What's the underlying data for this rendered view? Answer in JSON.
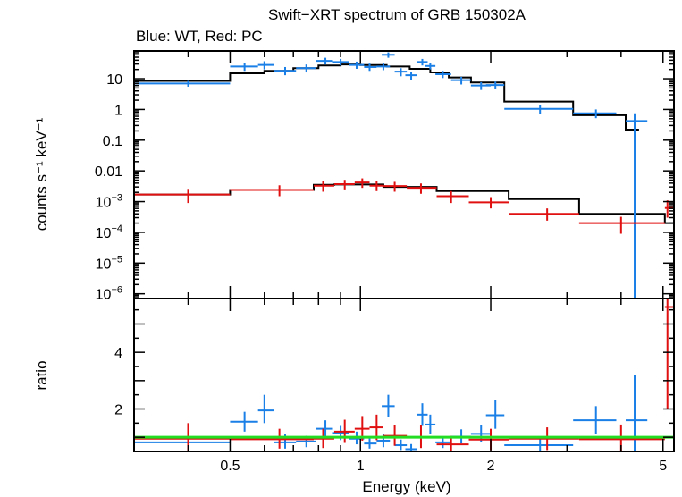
{
  "chart_data": {
    "type": "scatter",
    "title": "Swift−XRT spectrum of GRB 150302A",
    "subtitle": "Blue: WT, Red: PC",
    "xlabel": "Energy (keV)",
    "xscale": "log",
    "xlim": [
      0.3,
      5.3
    ],
    "x_ticks": [
      {
        "value": 0.5,
        "label": "0.5"
      },
      {
        "value": 1,
        "label": "1"
      },
      {
        "value": 2,
        "label": "2"
      },
      {
        "value": 5,
        "label": "5"
      }
    ],
    "colors": {
      "wt": "#1a7fe6",
      "pc": "#e01010",
      "model": "#000000",
      "unity": "#22dd22"
    },
    "top_panel": {
      "ylabel": "counts s⁻¹ keV⁻¹",
      "yscale": "log",
      "ylim": [
        7e-07,
        80
      ],
      "y_ticks": [
        {
          "value": 10,
          "label": "10"
        },
        {
          "value": 1,
          "label": "1"
        },
        {
          "value": 0.1,
          "label": "0.1"
        },
        {
          "value": 0.01,
          "label": "0.01"
        },
        {
          "value": 0.001,
          "base": "10",
          "exp": "−3"
        },
        {
          "value": 0.0001,
          "base": "10",
          "exp": "−4"
        },
        {
          "value": 1e-05,
          "base": "10",
          "exp": "−5"
        },
        {
          "value": 1e-06,
          "base": "10",
          "exp": "−6"
        }
      ],
      "series": [
        {
          "name": "WT data",
          "color": "#1a7fe6",
          "points": [
            {
              "x": 0.4,
              "xlo": 0.3,
              "xhi": 0.5,
              "y": 7,
              "ylo": 5.5,
              "yhi": 8.5
            },
            {
              "x": 0.54,
              "xlo": 0.5,
              "xhi": 0.58,
              "y": 25,
              "ylo": 18,
              "yhi": 33
            },
            {
              "x": 0.6,
              "xlo": 0.58,
              "xhi": 0.63,
              "y": 28,
              "ylo": 20,
              "yhi": 37
            },
            {
              "x": 0.67,
              "xlo": 0.63,
              "xhi": 0.71,
              "y": 18,
              "ylo": 13,
              "yhi": 24
            },
            {
              "x": 0.75,
              "xlo": 0.71,
              "xhi": 0.79,
              "y": 22,
              "ylo": 16,
              "yhi": 29
            },
            {
              "x": 0.83,
              "xlo": 0.79,
              "xhi": 0.86,
              "y": 38,
              "ylo": 29,
              "yhi": 48
            },
            {
              "x": 0.9,
              "xlo": 0.86,
              "xhi": 0.94,
              "y": 35,
              "ylo": 27,
              "yhi": 44
            },
            {
              "x": 0.98,
              "xlo": 0.94,
              "xhi": 1.02,
              "y": 28,
              "ylo": 21,
              "yhi": 36
            },
            {
              "x": 1.05,
              "xlo": 1.02,
              "xhi": 1.09,
              "y": 24,
              "ylo": 18,
              "yhi": 31
            },
            {
              "x": 1.13,
              "xlo": 1.09,
              "xhi": 1.17,
              "y": 25,
              "ylo": 19,
              "yhi": 32
            },
            {
              "x": 1.16,
              "xlo": 1.12,
              "xhi": 1.2,
              "y": 60,
              "ylo": 48,
              "yhi": 72
            },
            {
              "x": 1.24,
              "xlo": 1.2,
              "xhi": 1.28,
              "y": 17,
              "ylo": 12,
              "yhi": 22
            },
            {
              "x": 1.31,
              "xlo": 1.27,
              "xhi": 1.35,
              "y": 13,
              "ylo": 9,
              "yhi": 17
            },
            {
              "x": 1.39,
              "xlo": 1.35,
              "xhi": 1.43,
              "y": 35,
              "ylo": 27,
              "yhi": 44
            },
            {
              "x": 1.45,
              "xlo": 1.41,
              "xhi": 1.49,
              "y": 26,
              "ylo": 20,
              "yhi": 33
            },
            {
              "x": 1.55,
              "xlo": 1.49,
              "xhi": 1.62,
              "y": 14,
              "ylo": 10.5,
              "yhi": 18
            },
            {
              "x": 1.71,
              "xlo": 1.62,
              "xhi": 1.8,
              "y": 9,
              "ylo": 6.5,
              "yhi": 11.5
            },
            {
              "x": 1.9,
              "xlo": 1.8,
              "xhi": 2.0,
              "y": 6,
              "ylo": 4.3,
              "yhi": 7.7
            },
            {
              "x": 2.05,
              "xlo": 1.95,
              "xhi": 2.15,
              "y": 6.2,
              "ylo": 4.5,
              "yhi": 8
            },
            {
              "x": 2.6,
              "xlo": 2.15,
              "xhi": 3.1,
              "y": 1.05,
              "ylo": 0.72,
              "yhi": 1.4
            },
            {
              "x": 3.5,
              "xlo": 3.1,
              "xhi": 3.9,
              "y": 0.75,
              "ylo": 0.52,
              "yhi": 1.0
            },
            {
              "x": 4.3,
              "xlo": 4.1,
              "xhi": 4.6,
              "y": 0.42,
              "ylo": 7e-07,
              "yhi": 0.75
            }
          ]
        },
        {
          "name": "WT model",
          "color": "#000000",
          "style": "step",
          "edges": [
            0.3,
            0.5,
            0.6,
            0.7,
            0.8,
            0.9,
            1.0,
            1.15,
            1.3,
            1.45,
            1.6,
            1.8,
            2.15,
            3.1,
            4.1,
            4.4
          ],
          "values": [
            8.5,
            15,
            18,
            22,
            27,
            29,
            28,
            25,
            21,
            16,
            11,
            7.5,
            1.8,
            0.65,
            0.22
          ]
        },
        {
          "name": "PC data",
          "color": "#e01010",
          "points": [
            {
              "x": 0.4,
              "xlo": 0.3,
              "xhi": 0.5,
              "y": 0.0017,
              "ylo": 0.0009,
              "yhi": 0.0026
            },
            {
              "x": 0.65,
              "xlo": 0.5,
              "xhi": 0.78,
              "y": 0.0024,
              "ylo": 0.0015,
              "yhi": 0.0034
            },
            {
              "x": 0.82,
              "xlo": 0.78,
              "xhi": 0.87,
              "y": 0.0033,
              "ylo": 0.0021,
              "yhi": 0.0046
            },
            {
              "x": 0.92,
              "xlo": 0.87,
              "xhi": 0.97,
              "y": 0.0037,
              "ylo": 0.0025,
              "yhi": 0.0051
            },
            {
              "x": 1.01,
              "xlo": 0.97,
              "xhi": 1.05,
              "y": 0.0042,
              "ylo": 0.0028,
              "yhi": 0.0057
            },
            {
              "x": 1.09,
              "xlo": 1.05,
              "xhi": 1.13,
              "y": 0.0033,
              "ylo": 0.0022,
              "yhi": 0.0046
            },
            {
              "x": 1.2,
              "xlo": 1.13,
              "xhi": 1.28,
              "y": 0.0032,
              "ylo": 0.0021,
              "yhi": 0.0044
            },
            {
              "x": 1.38,
              "xlo": 1.28,
              "xhi": 1.5,
              "y": 0.0028,
              "ylo": 0.0018,
              "yhi": 0.0039
            },
            {
              "x": 1.62,
              "xlo": 1.5,
              "xhi": 1.78,
              "y": 0.0015,
              "ylo": 0.0009,
              "yhi": 0.0022
            },
            {
              "x": 2.0,
              "xlo": 1.78,
              "xhi": 2.2,
              "y": 0.00095,
              "ylo": 0.0006,
              "yhi": 0.0014
            },
            {
              "x": 2.7,
              "xlo": 2.2,
              "xhi": 3.2,
              "y": 0.0004,
              "ylo": 0.00024,
              "yhi": 0.0006
            },
            {
              "x": 4.0,
              "xlo": 3.2,
              "xhi": 5.05,
              "y": 0.0002,
              "ylo": 9e-05,
              "yhi": 0.00032
            },
            {
              "x": 5.12,
              "xlo": 5.05,
              "xhi": 5.3,
              "y": 0.00062,
              "ylo": 0.0003,
              "yhi": 0.0011
            }
          ]
        },
        {
          "name": "PC model",
          "color": "#000000",
          "style": "step",
          "edges": [
            0.3,
            0.5,
            0.78,
            0.87,
            1.13,
            1.5,
            2.2,
            3.2,
            5.05,
            5.3
          ],
          "values": [
            0.0017,
            0.0024,
            0.0035,
            0.0036,
            0.003,
            0.0022,
            0.0012,
            0.0004,
            0.0002,
            0.0001
          ]
        }
      ]
    },
    "bottom_panel": {
      "ylabel": "ratio",
      "ylim": [
        0.5,
        5.9
      ],
      "y_ticks": [
        {
          "value": 2,
          "label": "2"
        },
        {
          "value": 4,
          "label": "4"
        }
      ],
      "unity_line": 1,
      "series": [
        {
          "name": "WT ratio",
          "color": "#1a7fe6",
          "points": [
            {
              "x": 0.4,
              "xlo": 0.3,
              "xhi": 0.5,
              "y": 0.82,
              "ylo": 0.66,
              "yhi": 0.98
            },
            {
              "x": 0.54,
              "xlo": 0.5,
              "xhi": 0.58,
              "y": 1.55,
              "ylo": 1.2,
              "yhi": 1.9
            },
            {
              "x": 0.6,
              "xlo": 0.58,
              "xhi": 0.63,
              "y": 1.95,
              "ylo": 1.5,
              "yhi": 2.5
            },
            {
              "x": 0.67,
              "xlo": 0.63,
              "xhi": 0.71,
              "y": 0.82,
              "ylo": 0.6,
              "yhi": 1.1
            },
            {
              "x": 0.75,
              "xlo": 0.71,
              "xhi": 0.79,
              "y": 0.85,
              "ylo": 0.65,
              "yhi": 1.05
            },
            {
              "x": 0.83,
              "xlo": 0.79,
              "xhi": 0.86,
              "y": 1.3,
              "ylo": 1.0,
              "yhi": 1.6
            },
            {
              "x": 0.9,
              "xlo": 0.86,
              "xhi": 0.94,
              "y": 1.15,
              "ylo": 0.9,
              "yhi": 1.4
            },
            {
              "x": 0.98,
              "xlo": 0.94,
              "xhi": 1.02,
              "y": 0.95,
              "ylo": 0.75,
              "yhi": 1.2
            },
            {
              "x": 1.05,
              "xlo": 1.02,
              "xhi": 1.09,
              "y": 0.78,
              "ylo": 0.6,
              "yhi": 0.98
            },
            {
              "x": 1.13,
              "xlo": 1.09,
              "xhi": 1.17,
              "y": 0.88,
              "ylo": 0.65,
              "yhi": 1.1
            },
            {
              "x": 1.16,
              "xlo": 1.12,
              "xhi": 1.2,
              "y": 2.1,
              "ylo": 1.7,
              "yhi": 2.5
            },
            {
              "x": 1.24,
              "xlo": 1.2,
              "xhi": 1.28,
              "y": 0.72,
              "ylo": 0.55,
              "yhi": 0.92
            },
            {
              "x": 1.31,
              "xlo": 1.27,
              "xhi": 1.35,
              "y": 0.58,
              "ylo": 0.4,
              "yhi": 0.76
            },
            {
              "x": 1.39,
              "xlo": 1.35,
              "xhi": 1.43,
              "y": 1.8,
              "ylo": 1.4,
              "yhi": 2.2
            },
            {
              "x": 1.45,
              "xlo": 1.41,
              "xhi": 1.49,
              "y": 1.45,
              "ylo": 1.1,
              "yhi": 1.8
            },
            {
              "x": 1.55,
              "xlo": 1.49,
              "xhi": 1.62,
              "y": 0.82,
              "ylo": 0.62,
              "yhi": 1.02
            },
            {
              "x": 1.71,
              "xlo": 1.62,
              "xhi": 1.8,
              "y": 1.02,
              "ylo": 0.78,
              "yhi": 1.28
            },
            {
              "x": 1.9,
              "xlo": 1.8,
              "xhi": 2.0,
              "y": 1.12,
              "ylo": 0.82,
              "yhi": 1.42
            },
            {
              "x": 2.05,
              "xlo": 1.95,
              "xhi": 2.15,
              "y": 1.78,
              "ylo": 1.3,
              "yhi": 2.3
            },
            {
              "x": 2.6,
              "xlo": 2.15,
              "xhi": 3.1,
              "y": 0.72,
              "ylo": 0.5,
              "yhi": 0.95
            },
            {
              "x": 3.5,
              "xlo": 3.1,
              "xhi": 3.9,
              "y": 1.6,
              "ylo": 1.1,
              "yhi": 2.1
            },
            {
              "x": 4.3,
              "xlo": 4.1,
              "xhi": 4.6,
              "y": 1.6,
              "ylo": 0.5,
              "yhi": 3.2
            }
          ]
        },
        {
          "name": "PC ratio",
          "color": "#e01010",
          "points": [
            {
              "x": 0.4,
              "xlo": 0.3,
              "xhi": 0.5,
              "y": 0.95,
              "ylo": 0.5,
              "yhi": 1.5
            },
            {
              "x": 0.65,
              "xlo": 0.5,
              "xhi": 0.78,
              "y": 0.93,
              "ylo": 0.6,
              "yhi": 1.3
            },
            {
              "x": 0.82,
              "xlo": 0.78,
              "xhi": 0.87,
              "y": 0.95,
              "ylo": 0.62,
              "yhi": 1.3
            },
            {
              "x": 0.92,
              "xlo": 0.87,
              "xhi": 0.97,
              "y": 1.2,
              "ylo": 0.8,
              "yhi": 1.62
            },
            {
              "x": 1.01,
              "xlo": 0.97,
              "xhi": 1.05,
              "y": 1.3,
              "ylo": 0.88,
              "yhi": 1.75
            },
            {
              "x": 1.09,
              "xlo": 1.05,
              "xhi": 1.13,
              "y": 1.35,
              "ylo": 0.9,
              "yhi": 1.8
            },
            {
              "x": 1.2,
              "xlo": 1.13,
              "xhi": 1.28,
              "y": 1.05,
              "ylo": 0.7,
              "yhi": 1.42
            },
            {
              "x": 1.38,
              "xlo": 1.28,
              "xhi": 1.5,
              "y": 1.0,
              "ylo": 0.62,
              "yhi": 1.42
            },
            {
              "x": 1.62,
              "xlo": 1.5,
              "xhi": 1.78,
              "y": 0.75,
              "ylo": 0.45,
              "yhi": 1.05
            },
            {
              "x": 2.0,
              "xlo": 1.78,
              "xhi": 2.2,
              "y": 0.92,
              "ylo": 0.55,
              "yhi": 1.3
            },
            {
              "x": 2.7,
              "xlo": 2.2,
              "xhi": 3.2,
              "y": 0.95,
              "ylo": 0.55,
              "yhi": 1.35
            },
            {
              "x": 4.0,
              "xlo": 3.2,
              "xhi": 5.05,
              "y": 0.93,
              "ylo": 0.5,
              "yhi": 1.45
            },
            {
              "x": 5.12,
              "xlo": 5.05,
              "xhi": 5.3,
              "y": 5.6,
              "ylo": 2.0,
              "yhi": 5.9
            }
          ]
        }
      ]
    }
  }
}
